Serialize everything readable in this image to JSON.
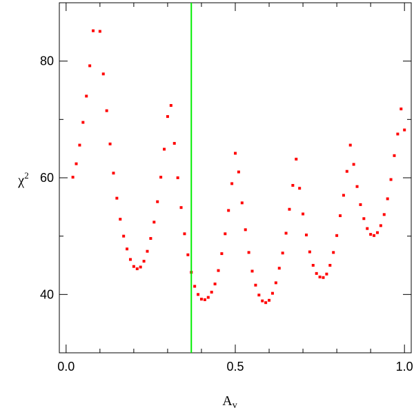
{
  "chart_data": {
    "type": "scatter",
    "xlabel": "A",
    "xlabel_subscript": "v",
    "ylabel": "χ",
    "ylabel_superscript": "2",
    "xlim": [
      -0.02,
      1.02
    ],
    "ylim": [
      30,
      90
    ],
    "x_ticks": [
      0.0,
      0.5,
      1.0
    ],
    "x_tick_labels": [
      "0.0",
      "0.5",
      "1.0"
    ],
    "y_ticks": [
      40,
      60,
      80
    ],
    "y_tick_labels": [
      "40",
      "60",
      "80"
    ],
    "marker_color": "#ff0000",
    "vline": {
      "x": 0.37,
      "color": "#00ee00"
    },
    "grid": false,
    "points": [
      [
        0.02,
        60.1
      ],
      [
        0.03,
        62.4
      ],
      [
        0.04,
        65.6
      ],
      [
        0.05,
        69.5
      ],
      [
        0.06,
        74.0
      ],
      [
        0.07,
        79.2
      ],
      [
        0.08,
        85.2
      ],
      [
        0.1,
        85.1
      ],
      [
        0.11,
        77.8
      ],
      [
        0.12,
        71.5
      ],
      [
        0.13,
        65.8
      ],
      [
        0.14,
        60.8
      ],
      [
        0.15,
        56.5
      ],
      [
        0.16,
        52.9
      ],
      [
        0.17,
        50.0
      ],
      [
        0.18,
        47.8
      ],
      [
        0.19,
        46.0
      ],
      [
        0.2,
        44.8
      ],
      [
        0.21,
        44.4
      ],
      [
        0.22,
        44.7
      ],
      [
        0.23,
        45.7
      ],
      [
        0.24,
        47.4
      ],
      [
        0.25,
        49.6
      ],
      [
        0.26,
        52.4
      ],
      [
        0.27,
        55.9
      ],
      [
        0.28,
        60.1
      ],
      [
        0.29,
        64.9
      ],
      [
        0.3,
        70.5
      ],
      [
        0.31,
        72.4
      ],
      [
        0.32,
        65.9
      ],
      [
        0.33,
        60.0
      ],
      [
        0.34,
        54.9
      ],
      [
        0.35,
        50.4
      ],
      [
        0.36,
        46.8
      ],
      [
        0.37,
        43.8
      ],
      [
        0.38,
        41.4
      ],
      [
        0.39,
        40.0
      ],
      [
        0.4,
        39.2
      ],
      [
        0.41,
        39.1
      ],
      [
        0.42,
        39.5
      ],
      [
        0.43,
        40.4
      ],
      [
        0.44,
        41.8
      ],
      [
        0.45,
        44.1
      ],
      [
        0.46,
        47.0
      ],
      [
        0.47,
        50.4
      ],
      [
        0.48,
        54.4
      ],
      [
        0.49,
        59.0
      ],
      [
        0.5,
        64.2
      ],
      [
        0.51,
        61.0
      ],
      [
        0.52,
        55.7
      ],
      [
        0.53,
        51.1
      ],
      [
        0.54,
        47.2
      ],
      [
        0.55,
        44.0
      ],
      [
        0.56,
        41.6
      ],
      [
        0.57,
        39.9
      ],
      [
        0.58,
        38.9
      ],
      [
        0.59,
        38.6
      ],
      [
        0.6,
        39.0
      ],
      [
        0.61,
        40.2
      ],
      [
        0.62,
        42.0
      ],
      [
        0.63,
        44.5
      ],
      [
        0.64,
        47.1
      ],
      [
        0.65,
        50.5
      ],
      [
        0.66,
        54.6
      ],
      [
        0.67,
        58.7
      ],
      [
        0.68,
        63.2
      ],
      [
        0.69,
        58.2
      ],
      [
        0.7,
        53.8
      ],
      [
        0.71,
        50.2
      ],
      [
        0.72,
        47.3
      ],
      [
        0.73,
        45.0
      ],
      [
        0.74,
        43.6
      ],
      [
        0.75,
        43.0
      ],
      [
        0.76,
        42.9
      ],
      [
        0.77,
        43.5
      ],
      [
        0.78,
        45.0
      ],
      [
        0.79,
        47.2
      ],
      [
        0.8,
        50.1
      ],
      [
        0.81,
        53.5
      ],
      [
        0.82,
        57.0
      ],
      [
        0.83,
        61.1
      ],
      [
        0.84,
        65.6
      ],
      [
        0.85,
        62.3
      ],
      [
        0.86,
        58.5
      ],
      [
        0.87,
        55.4
      ],
      [
        0.88,
        53.0
      ],
      [
        0.89,
        51.3
      ],
      [
        0.9,
        50.3
      ],
      [
        0.91,
        50.1
      ],
      [
        0.92,
        50.6
      ],
      [
        0.93,
        51.8
      ],
      [
        0.94,
        53.7
      ],
      [
        0.95,
        56.4
      ],
      [
        0.96,
        59.7
      ],
      [
        0.97,
        63.8
      ],
      [
        0.98,
        67.5
      ],
      [
        0.99,
        71.8
      ],
      [
        1.0,
        68.2
      ]
    ]
  }
}
